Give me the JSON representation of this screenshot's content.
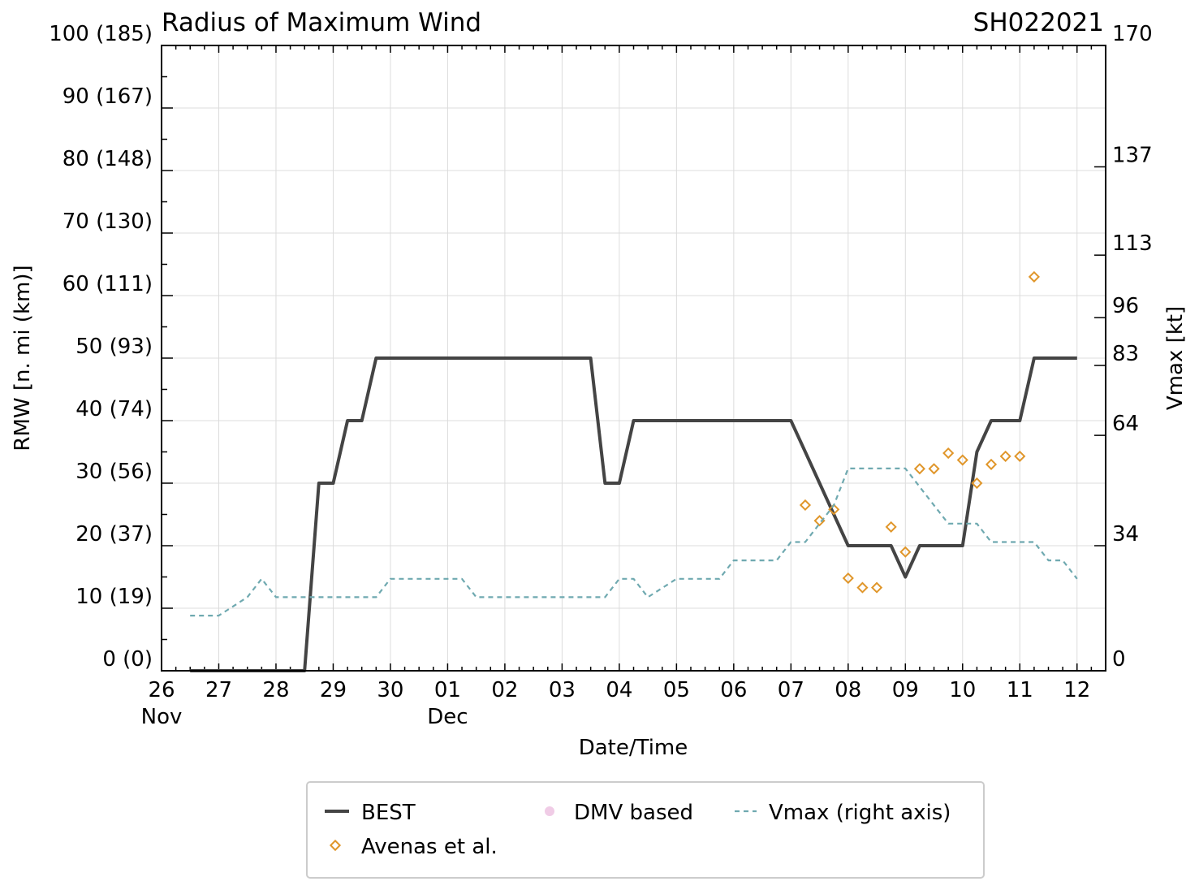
{
  "chart_data": {
    "type": "line",
    "title": "Radius of Maximum Wind",
    "storm_id": "SH022021",
    "xlabel": "Date/Time",
    "ylabel": "RMW [n. mi (km)]",
    "y2label": "Vmax [kt]",
    "x_unit": "days since 26 Nov 00Z",
    "xlim": [
      0,
      16.5
    ],
    "ylim": [
      0,
      100
    ],
    "y2lim": [
      0,
      170
    ],
    "grid": true,
    "x_ticks": [
      {
        "value": 0,
        "label": "26",
        "sublabel": "Nov"
      },
      {
        "value": 1,
        "label": "27"
      },
      {
        "value": 2,
        "label": "28"
      },
      {
        "value": 3,
        "label": "29"
      },
      {
        "value": 4,
        "label": "30"
      },
      {
        "value": 5,
        "label": "01",
        "sublabel": "Dec"
      },
      {
        "value": 6,
        "label": "02"
      },
      {
        "value": 7,
        "label": "03"
      },
      {
        "value": 8,
        "label": "04"
      },
      {
        "value": 9,
        "label": "05"
      },
      {
        "value": 10,
        "label": "06"
      },
      {
        "value": 11,
        "label": "07"
      },
      {
        "value": 12,
        "label": "08"
      },
      {
        "value": 13,
        "label": "09"
      },
      {
        "value": 14,
        "label": "10"
      },
      {
        "value": 15,
        "label": "11"
      },
      {
        "value": 16,
        "label": "12"
      }
    ],
    "y_ticks": [
      {
        "value": 0,
        "label": "0 (0)"
      },
      {
        "value": 10,
        "label": "10 (19)"
      },
      {
        "value": 20,
        "label": "20 (37)"
      },
      {
        "value": 30,
        "label": "30 (56)"
      },
      {
        "value": 40,
        "label": "40 (74)"
      },
      {
        "value": 50,
        "label": "50 (93)"
      },
      {
        "value": 60,
        "label": "60 (111)"
      },
      {
        "value": 70,
        "label": "70 (130)"
      },
      {
        "value": 80,
        "label": "80 (148)"
      },
      {
        "value": 90,
        "label": "90 (167)"
      },
      {
        "value": 100,
        "label": "100 (185)"
      }
    ],
    "y2_ticks": [
      {
        "value": 0,
        "label": "0"
      },
      {
        "value": 34,
        "label": "34"
      },
      {
        "value": 64,
        "label": "64"
      },
      {
        "value": 83,
        "label": "83"
      },
      {
        "value": 96,
        "label": "96"
      },
      {
        "value": 113,
        "label": "113"
      },
      {
        "value": 137,
        "label": "137"
      },
      {
        "value": 170,
        "label": "170"
      }
    ],
    "series": [
      {
        "name": "BEST",
        "style": "line",
        "color": "#444444",
        "x": [
          0.5,
          1,
          1.5,
          2,
          2.5,
          2.75,
          3,
          3.25,
          3.5,
          3.75,
          4,
          4.5,
          5,
          5.5,
          6,
          6.5,
          7,
          7.5,
          7.75,
          8,
          8.25,
          8.5,
          9,
          9.5,
          10,
          10.5,
          11,
          11.25,
          11.5,
          11.75,
          12,
          12.25,
          12.5,
          12.75,
          13,
          13.25,
          13.5,
          13.75,
          14,
          14.25,
          14.5,
          14.75,
          15,
          15.25,
          15.5,
          15.75,
          16
        ],
        "y": [
          0,
          0,
          0,
          0,
          0,
          30,
          30,
          40,
          40,
          50,
          50,
          50,
          50,
          50,
          50,
          50,
          50,
          50,
          30,
          30,
          40,
          40,
          40,
          40,
          40,
          40,
          40,
          35,
          30,
          25,
          20,
          20,
          20,
          20,
          15,
          20,
          20,
          20,
          20,
          35,
          40,
          40,
          40,
          50,
          50,
          50,
          50
        ]
      },
      {
        "name": "Avenas et al.",
        "style": "marker",
        "marker": "diamond-open",
        "color": "#e0962a",
        "x": [
          11.25,
          11.5,
          11.75,
          12,
          12.25,
          12.5,
          12.75,
          13,
          13.25,
          13.5,
          13.75,
          14,
          14.25,
          14.5,
          14.75,
          15,
          15.25
        ],
        "y": [
          26.5,
          24,
          25.8,
          14.8,
          13.3,
          13.3,
          23,
          19,
          32.3,
          32.3,
          34.8,
          33.7,
          30,
          33,
          34.3,
          34.3,
          63
        ]
      },
      {
        "name": "DMV based",
        "style": "marker",
        "marker": "circle",
        "color": "#f0cce6",
        "x": [],
        "y": []
      },
      {
        "name": "Vmax (right axis)",
        "style": "dashed",
        "axis": "right",
        "color": "#6fa9b0",
        "x": [
          0.5,
          1,
          1.5,
          1.75,
          2,
          2.5,
          3,
          3.5,
          3.75,
          4,
          4.5,
          5,
          5.25,
          5.5,
          6,
          6.5,
          7,
          7.5,
          7.75,
          8,
          8.25,
          8.5,
          9,
          9.5,
          9.75,
          10,
          10.5,
          10.75,
          11,
          11.25,
          11.5,
          11.75,
          12,
          12.5,
          13,
          13.25,
          13.5,
          13.75,
          14,
          14.25,
          14.5,
          15,
          15.25,
          15.5,
          15.75,
          16
        ],
        "y": [
          15,
          15,
          20,
          25,
          20,
          20,
          20,
          20,
          20,
          25,
          25,
          25,
          25,
          20,
          20,
          20,
          20,
          20,
          20,
          25,
          25,
          20,
          25,
          25,
          25,
          30,
          30,
          30,
          35,
          35,
          40,
          45,
          55,
          55,
          55,
          50,
          45,
          40,
          40,
          40,
          35,
          35,
          35,
          30,
          30,
          25
        ]
      }
    ],
    "legend": {
      "position": "bottom",
      "entries": [
        "BEST",
        "Avenas et al.",
        "DMV based",
        "Vmax (right axis)"
      ]
    }
  }
}
